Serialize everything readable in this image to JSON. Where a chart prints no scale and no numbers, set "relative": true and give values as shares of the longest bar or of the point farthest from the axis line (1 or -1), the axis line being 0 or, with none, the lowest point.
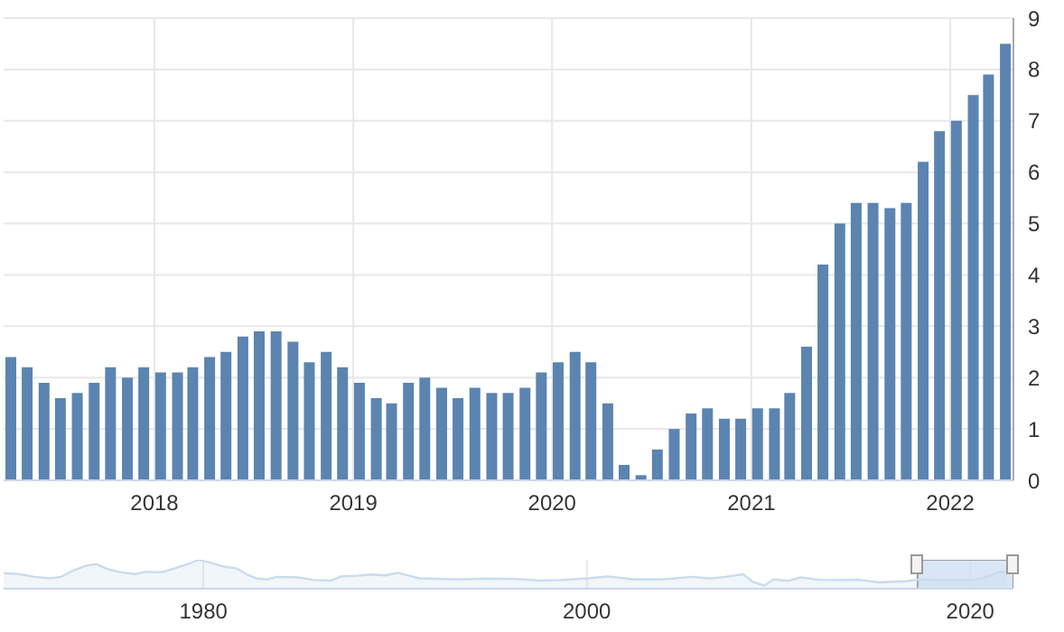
{
  "chart_data": [
    {
      "type": "bar",
      "color": "#5b84b1",
      "ylim": [
        0,
        9
      ],
      "yticks": [
        0,
        1,
        2,
        3,
        4,
        5,
        6,
        7,
        8,
        9
      ],
      "xlim": [
        "2017-03-30",
        "2022-04-27"
      ],
      "xticks": [
        "2018",
        "2019",
        "2020",
        "2021",
        "2022"
      ],
      "grid": true,
      "x": [
        "2017-04-13",
        "2017-05-13",
        "2017-06-13",
        "2017-07-13",
        "2017-08-13",
        "2017-09-13",
        "2017-10-13",
        "2017-11-13",
        "2017-12-13",
        "2018-01-13",
        "2018-02-13",
        "2018-03-13",
        "2018-04-13",
        "2018-05-13",
        "2018-06-13",
        "2018-07-13",
        "2018-08-13",
        "2018-09-13",
        "2018-10-13",
        "2018-11-13",
        "2018-12-13",
        "2019-01-13",
        "2019-02-13",
        "2019-03-13",
        "2019-04-13",
        "2019-05-13",
        "2019-06-13",
        "2019-07-13",
        "2019-08-13",
        "2019-09-13",
        "2019-10-13",
        "2019-11-13",
        "2019-12-13",
        "2020-01-13",
        "2020-02-13",
        "2020-03-13",
        "2020-04-13",
        "2020-05-13",
        "2020-06-13",
        "2020-07-13",
        "2020-08-13",
        "2020-09-13",
        "2020-10-13",
        "2020-11-13",
        "2020-12-13",
        "2021-01-13",
        "2021-02-13",
        "2021-03-13",
        "2021-04-13",
        "2021-05-13",
        "2021-06-13",
        "2021-07-13",
        "2021-08-13",
        "2021-09-13",
        "2021-10-13",
        "2021-11-13",
        "2021-12-13",
        "2022-01-13",
        "2022-02-13",
        "2022-03-13",
        "2022-04-13"
      ],
      "values": [
        2.4,
        2.2,
        1.9,
        1.6,
        1.7,
        1.9,
        2.2,
        2.0,
        2.2,
        2.1,
        2.1,
        2.2,
        2.4,
        2.5,
        2.8,
        2.9,
        2.9,
        2.7,
        2.3,
        2.5,
        2.2,
        1.9,
        1.6,
        1.5,
        1.9,
        2.0,
        1.8,
        1.6,
        1.8,
        1.7,
        1.7,
        1.8,
        2.1,
        2.3,
        2.5,
        2.3,
        1.5,
        0.3,
        0.1,
        0.6,
        1.0,
        1.3,
        1.4,
        1.2,
        1.2,
        1.4,
        1.4,
        1.7,
        2.6,
        4.2,
        5.0,
        5.4,
        5.4,
        5.3,
        5.4,
        6.2,
        6.8,
        7.0,
        7.5,
        7.9,
        8.5
      ]
    },
    {
      "type": "area",
      "relative": true,
      "color": "#c9dcec",
      "xlim": [
        "1969-08",
        "2022-04"
      ],
      "xticks": [
        "1980",
        "2000",
        "2020"
      ],
      "grid": "x",
      "tick_labels": "x",
      "bands": [
        {
          "axis": "x",
          "from": "2017-04",
          "to": "2022-04",
          "color": "#cfe0f3"
        }
      ],
      "x": [
        "1969-08",
        "1970-06",
        "1971-03",
        "1972-01",
        "1972-08",
        "1973-04",
        "1973-12",
        "1974-06",
        "1975-01",
        "1975-08",
        "1976-06",
        "1977-01",
        "1977-11",
        "1978-07",
        "1979-04",
        "1979-10",
        "1980-05",
        "1981-01",
        "1981-10",
        "1982-04",
        "1982-10",
        "1983-05",
        "1983-11",
        "1984-12",
        "1985-10",
        "1986-09",
        "1987-03",
        "1988-02",
        "1988-10",
        "1989-07",
        "1990-03",
        "1991-04",
        "1993-05",
        "1994-10",
        "1996-03",
        "1997-08",
        "1998-09",
        "2000-02",
        "2001-02",
        "2002-07",
        "2003-12",
        "2004-09",
        "2005-07",
        "2006-06",
        "2007-04",
        "2008-03",
        "2008-09",
        "2009-04",
        "2009-10",
        "2010-07",
        "2011-03",
        "2012-02",
        "2013-02",
        "2014-03",
        "2015-04",
        "2016-09",
        "2017-05",
        "2018-06",
        "2019-07",
        "2020-03",
        "2020-12",
        "2021-07",
        "2021-12"
      ],
      "values": [
        0.54,
        0.5,
        0.41,
        0.36,
        0.41,
        0.64,
        0.8,
        0.85,
        0.68,
        0.58,
        0.5,
        0.58,
        0.57,
        0.7,
        0.86,
        1,
        0.91,
        0.77,
        0.7,
        0.5,
        0.36,
        0.32,
        0.41,
        0.39,
        0.3,
        0.28,
        0.42,
        0.45,
        0.49,
        0.46,
        0.55,
        0.36,
        0.32,
        0.35,
        0.34,
        0.28,
        0.3,
        0.36,
        0.42,
        0.32,
        0.32,
        0.36,
        0.41,
        0.35,
        0.41,
        0.5,
        0.23,
        0.11,
        0.32,
        0.27,
        0.39,
        0.31,
        0.3,
        0.31,
        0.22,
        0.26,
        0.32,
        0.3,
        0.31,
        0.3,
        0.43,
        0.57,
        0.59
      ]
    }
  ]
}
